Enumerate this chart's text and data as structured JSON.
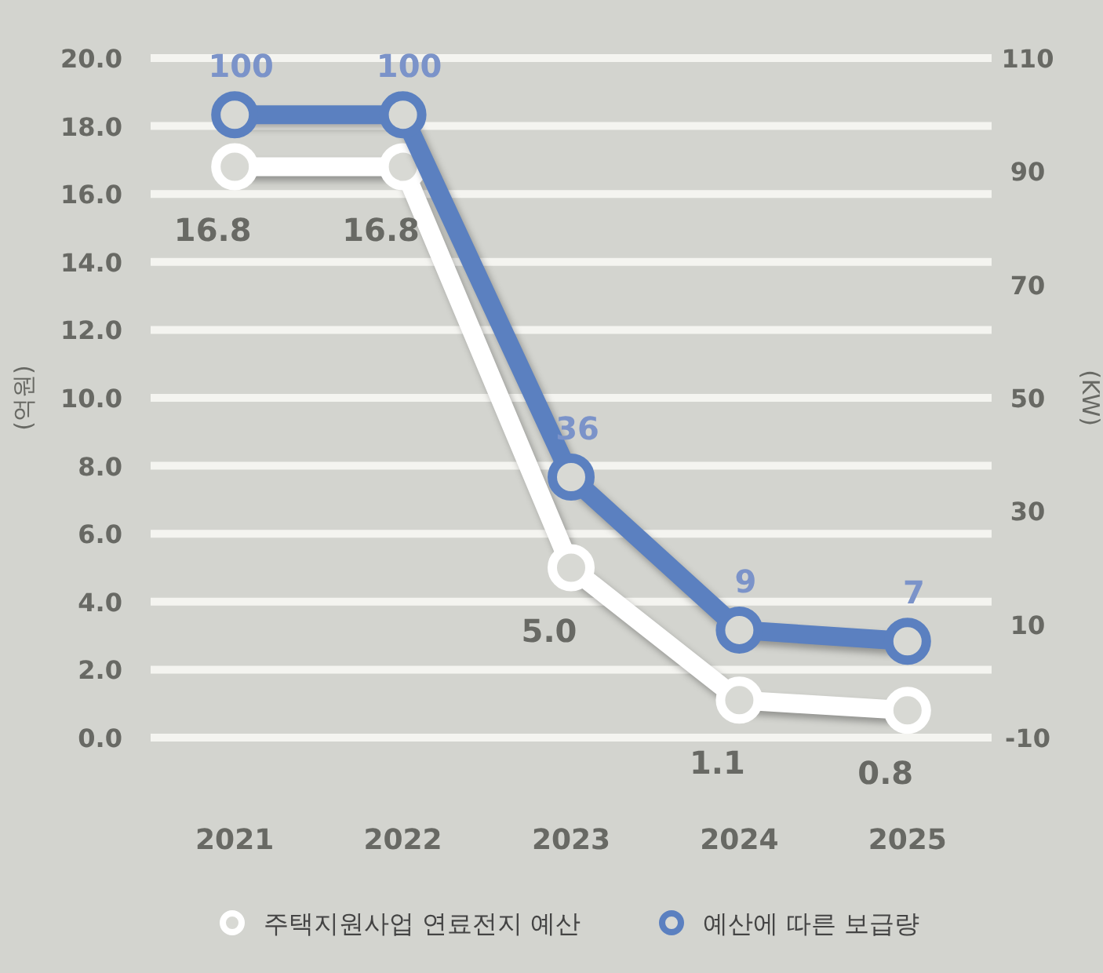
{
  "chart_data": {
    "type": "line",
    "ylabel": "(억원)",
    "y2label": "(KW)",
    "categories": [
      "2021",
      "2022",
      "2023",
      "2024",
      "2025"
    ],
    "series": [
      {
        "name": "주택지원사업 연료전지 예산",
        "color": "#ffffff",
        "values": [
          16.8,
          16.8,
          5.0,
          1.1,
          0.8
        ],
        "value_labels": [
          "16.8",
          "16.8",
          "5.0",
          "1.1",
          "0.8"
        ]
      },
      {
        "name": "예산에 따른 보급량",
        "color": "#5b80c0",
        "axis": "y2",
        "values": [
          100,
          100,
          36,
          9,
          7
        ],
        "value_labels": [
          "100",
          "100",
          "36",
          "9",
          "7"
        ]
      }
    ],
    "ylim": [
      0,
      20
    ],
    "yticks": [
      {
        "value": 0,
        "label": "0.0"
      },
      {
        "value": 2,
        "label": "2.0"
      },
      {
        "value": 4,
        "label": "4.0"
      },
      {
        "value": 6,
        "label": "6.0"
      },
      {
        "value": 8,
        "label": "8.0"
      },
      {
        "value": 10,
        "label": "10.0"
      },
      {
        "value": 12,
        "label": "12.0"
      },
      {
        "value": 14,
        "label": "14.0"
      },
      {
        "value": 16,
        "label": "16.0"
      },
      {
        "value": 18,
        "label": "18.0"
      },
      {
        "value": 20,
        "label": "20.0"
      }
    ],
    "y2lim": [
      -10,
      110
    ],
    "y2ticks": [
      -10,
      10,
      30,
      50,
      70,
      90,
      110
    ],
    "grid": "y",
    "legend": "bottom",
    "marker": "circle",
    "line_style": "solid"
  }
}
